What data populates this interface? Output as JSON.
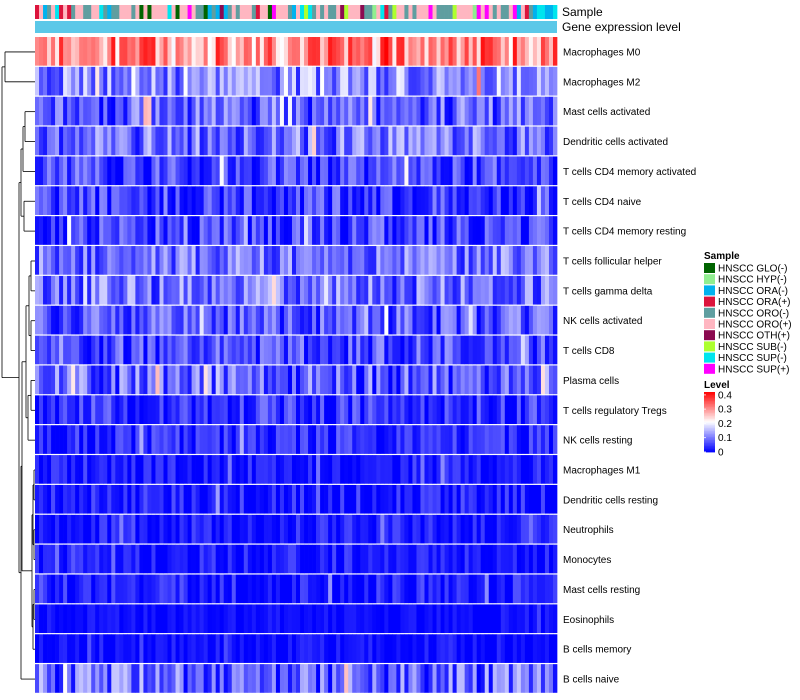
{
  "chart_data": {
    "type": "heatmap",
    "title": "",
    "annotations": {
      "sample_row_label": "Sample",
      "expression_row_label": "Gene expression level",
      "expression_bar_color": "#5BC8E8"
    },
    "rows": [
      {
        "label": "Macrophages M0",
        "mean": 0.3,
        "spread": 0.1
      },
      {
        "label": "Macrophages M2",
        "mean": 0.12,
        "spread": 0.09
      },
      {
        "label": "Mast cells activated",
        "mean": 0.08,
        "spread": 0.08
      },
      {
        "label": "Dendritic cells activated",
        "mean": 0.09,
        "spread": 0.08
      },
      {
        "label": "T cells CD4 memory activated",
        "mean": 0.05,
        "spread": 0.07
      },
      {
        "label": "T cells CD4 naive",
        "mean": 0.05,
        "spread": 0.07
      },
      {
        "label": "T cells CD4 memory resting",
        "mean": 0.05,
        "spread": 0.07
      },
      {
        "label": "T cells follicular helper",
        "mean": 0.09,
        "spread": 0.07
      },
      {
        "label": "T cells gamma delta",
        "mean": 0.09,
        "spread": 0.08
      },
      {
        "label": "NK cells activated",
        "mean": 0.07,
        "spread": 0.07
      },
      {
        "label": "T cells CD8",
        "mean": 0.06,
        "spread": 0.07
      },
      {
        "label": "Plasma cells",
        "mean": 0.08,
        "spread": 0.09
      },
      {
        "label": "T cells regulatory  Tregs",
        "mean": 0.04,
        "spread": 0.06
      },
      {
        "label": "NK cells resting",
        "mean": 0.03,
        "spread": 0.05
      },
      {
        "label": "Macrophages M1",
        "mean": 0.02,
        "spread": 0.04
      },
      {
        "label": "Dendritic cells resting",
        "mean": 0.02,
        "spread": 0.05
      },
      {
        "label": "Neutrophils",
        "mean": 0.02,
        "spread": 0.04
      },
      {
        "label": "Monocytes",
        "mean": 0.02,
        "spread": 0.04
      },
      {
        "label": "Mast cells resting",
        "mean": 0.02,
        "spread": 0.05
      },
      {
        "label": "Eosinophils",
        "mean": 0.01,
        "spread": 0.02
      },
      {
        "label": "B cells memory",
        "mean": 0.01,
        "spread": 0.03
      },
      {
        "label": "B cells naive",
        "mean": 0.08,
        "spread": 0.09
      }
    ],
    "n_samples": 130,
    "sample_groups": [
      {
        "label": "HNSCC GLO(-)",
        "color": "#006400"
      },
      {
        "label": "HNSCC HYP(-)",
        "color": "#90EE90"
      },
      {
        "label": "HNSCC ORA(-)",
        "color": "#00B2EE"
      },
      {
        "label": "HNSCC ORA(+)",
        "color": "#DC143C"
      },
      {
        "label": "HNSCC ORO(-)",
        "color": "#5F9EA0"
      },
      {
        "label": "HNSCC ORO(+)",
        "color": "#FFB6C1"
      },
      {
        "label": "HNSCC OTH(+)",
        "color": "#8B0A50"
      },
      {
        "label": "HNSCC SUB(-)",
        "color": "#ADFF2F"
      },
      {
        "label": "HNSCC SUP(-)",
        "color": "#00E5EE"
      },
      {
        "label": "HNSCC SUP(+)",
        "color": "#FF00FF"
      }
    ],
    "sample_weights": [
      1,
      1,
      2,
      2,
      8,
      14,
      1,
      1,
      3,
      1
    ],
    "legend": {
      "sample_title": "Sample",
      "level_title": "Level",
      "level_ticks": [
        "0.4",
        "0.3",
        "0.2",
        "0.1",
        "0"
      ],
      "level_tick_values": [
        0.4,
        0.3,
        0.2,
        0.1,
        0.0
      ],
      "range": [
        0,
        0.42
      ]
    },
    "colorscale": [
      "#0000FF",
      "#FFFFFF",
      "#FF0000"
    ],
    "dendrogram": "rows clustered (hierarchical)"
  }
}
